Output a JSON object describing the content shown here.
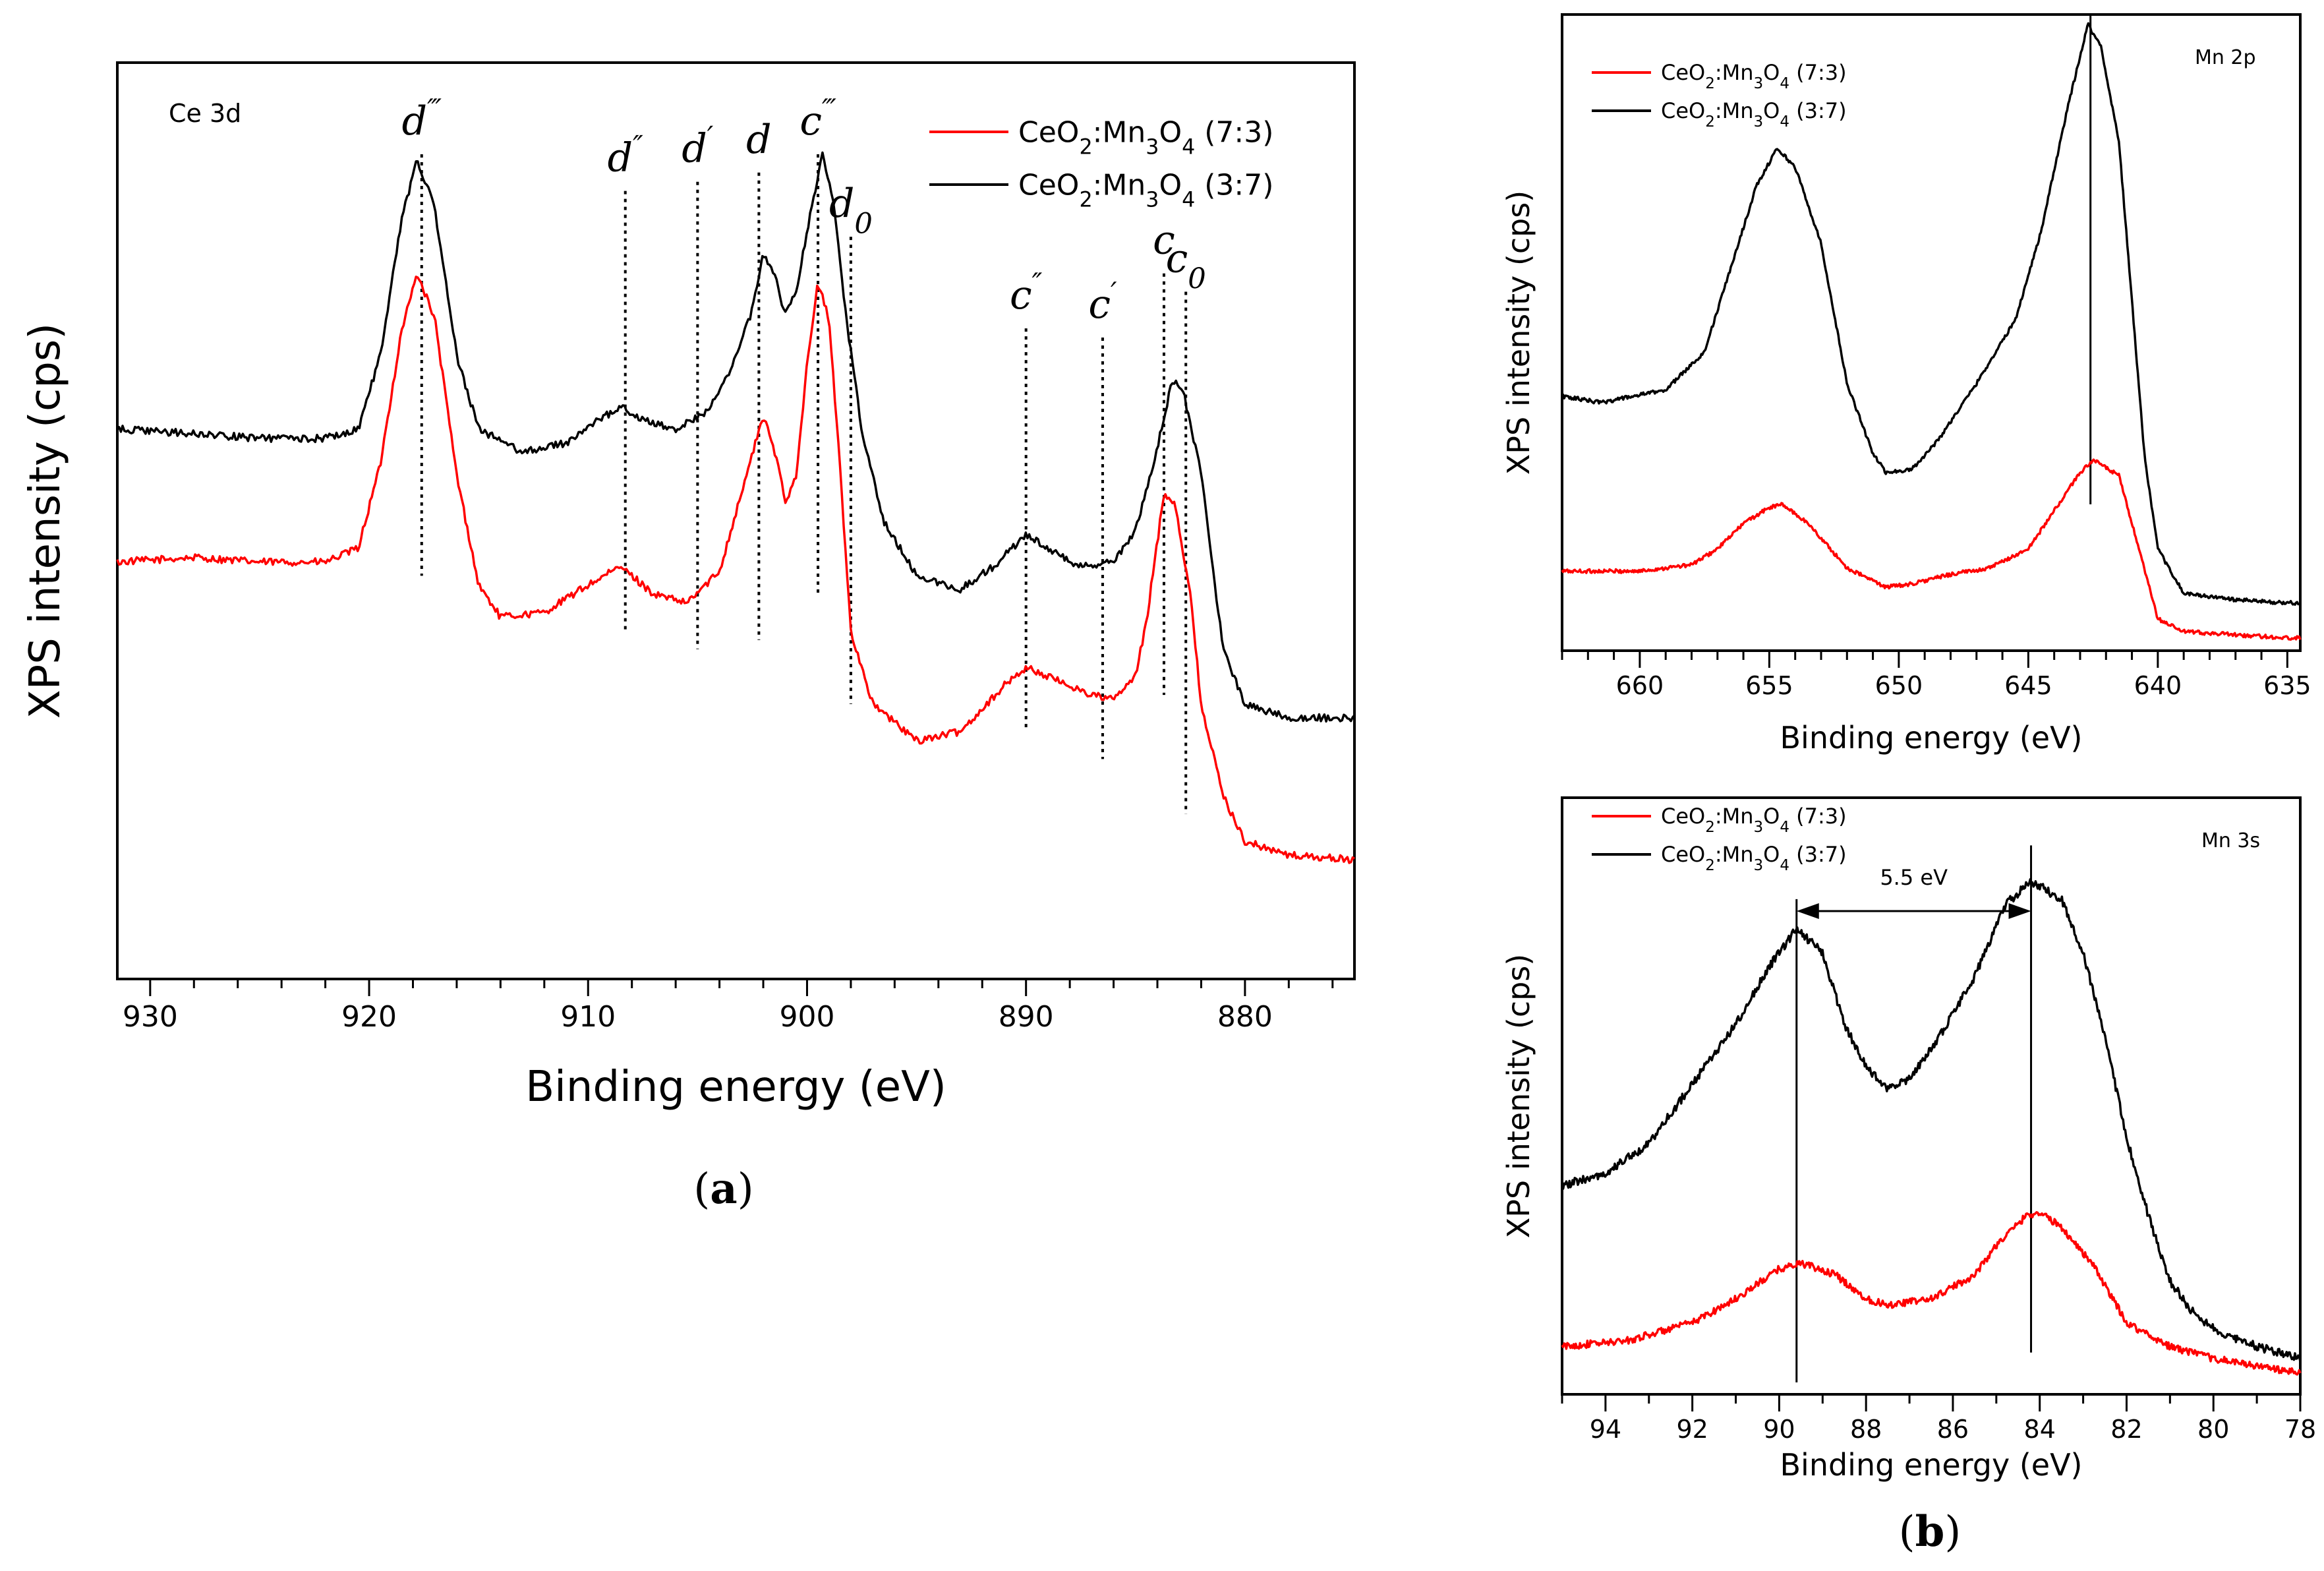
{
  "chart_data": [
    {
      "id": "a",
      "type": "line",
      "panel_label": "(a)",
      "title": "Ce 3d",
      "xlabel": "Binding energy (eV)",
      "ylabel": "XPS intensity (cps)",
      "xlim": [
        931.5,
        875
      ],
      "ylim": [
        0,
        1
      ],
      "x_reversed": true,
      "xticks": [
        930,
        920,
        910,
        900,
        890,
        880
      ],
      "legend": {
        "position": "top-right",
        "entries": [
          {
            "label": "CeO₂:Mn₃O₄ (7:3)",
            "color": "#ff0000"
          },
          {
            "label": "CeO₂:Mn₃O₄ (3:7)",
            "color": "#000000"
          }
        ]
      },
      "series": [
        {
          "name": "CeO₂:Mn₃O₄ (7:3)",
          "color": "#ff0000",
          "noise": 0.004,
          "points": [
            [
              931.5,
              0.455
            ],
            [
              928,
              0.46
            ],
            [
              925,
              0.455
            ],
            [
              922,
              0.455
            ],
            [
              920.5,
              0.47
            ],
            [
              919.5,
              0.56
            ],
            [
              918.5,
              0.71
            ],
            [
              917.8,
              0.77
            ],
            [
              917,
              0.72
            ],
            [
              916,
              0.55
            ],
            [
              915,
              0.43
            ],
            [
              914,
              0.395
            ],
            [
              912,
              0.4
            ],
            [
              910,
              0.43
            ],
            [
              908.5,
              0.45
            ],
            [
              907,
              0.42
            ],
            [
              905.5,
              0.41
            ],
            [
              904,
              0.445
            ],
            [
              903,
              0.53
            ],
            [
              902,
              0.615
            ],
            [
              901.3,
              0.56
            ],
            [
              901,
              0.52
            ],
            [
              900.5,
              0.55
            ],
            [
              900,
              0.67
            ],
            [
              899.5,
              0.76
            ],
            [
              899,
              0.72
            ],
            [
              898.5,
              0.56
            ],
            [
              898,
              0.38
            ],
            [
              897,
              0.3
            ],
            [
              895,
              0.26
            ],
            [
              893,
              0.27
            ],
            [
              891,
              0.32
            ],
            [
              890,
              0.34
            ],
            [
              889,
              0.33
            ],
            [
              887,
              0.31
            ],
            [
              886,
              0.305
            ],
            [
              885,
              0.33
            ],
            [
              884.5,
              0.39
            ],
            [
              883.7,
              0.53
            ],
            [
              883.2,
              0.52
            ],
            [
              882.5,
              0.42
            ],
            [
              882,
              0.3
            ],
            [
              881,
              0.2
            ],
            [
              880,
              0.15
            ],
            [
              878,
              0.135
            ],
            [
              875,
              0.13
            ]
          ]
        },
        {
          "name": "CeO₂:Mn₃O₄ (3:7)",
          "color": "#000000",
          "noise": 0.004,
          "points": [
            [
              931.5,
              0.6
            ],
            [
              928,
              0.595
            ],
            [
              925,
              0.59
            ],
            [
              922,
              0.59
            ],
            [
              920.5,
              0.6
            ],
            [
              919.5,
              0.68
            ],
            [
              918.5,
              0.83
            ],
            [
              917.8,
              0.895
            ],
            [
              917,
              0.84
            ],
            [
              916,
              0.68
            ],
            [
              915,
              0.6
            ],
            [
              913,
              0.575
            ],
            [
              911,
              0.585
            ],
            [
              909.5,
              0.61
            ],
            [
              908.5,
              0.625
            ],
            [
              907.5,
              0.61
            ],
            [
              906,
              0.6
            ],
            [
              904.5,
              0.62
            ],
            [
              903.5,
              0.665
            ],
            [
              902.5,
              0.73
            ],
            [
              902,
              0.79
            ],
            [
              901.5,
              0.77
            ],
            [
              901,
              0.725
            ],
            [
              900.5,
              0.75
            ],
            [
              899.8,
              0.84
            ],
            [
              899.3,
              0.9
            ],
            [
              898.8,
              0.85
            ],
            [
              898.2,
              0.72
            ],
            [
              897.5,
              0.6
            ],
            [
              896.5,
              0.5
            ],
            [
              895,
              0.44
            ],
            [
              893,
              0.425
            ],
            [
              891.5,
              0.45
            ],
            [
              890,
              0.485
            ],
            [
              889,
              0.47
            ],
            [
              887.5,
              0.45
            ],
            [
              886,
              0.455
            ],
            [
              885,
              0.49
            ],
            [
              884,
              0.58
            ],
            [
              883.3,
              0.655
            ],
            [
              882.8,
              0.64
            ],
            [
              882,
              0.55
            ],
            [
              881,
              0.36
            ],
            [
              880,
              0.3
            ],
            [
              878,
              0.285
            ],
            [
              875,
              0.285
            ]
          ]
        }
      ],
      "peak_lines": [
        {
          "label": "d",
          "primes": "‴",
          "x": 917.6,
          "y_top": 0.9,
          "y_bottom": 0.44
        },
        {
          "label": "d",
          "primes": "″",
          "x": 908.3,
          "y_top": 0.86,
          "y_bottom": 0.38
        },
        {
          "label": "d",
          "primes": "′",
          "x": 905,
          "y_top": 0.87,
          "y_bottom": 0.36
        },
        {
          "label": "d",
          "primes": "",
          "x": 902.2,
          "y_top": 0.88,
          "y_bottom": 0.37
        },
        {
          "label": "c",
          "primes": "‴",
          "x": 899.5,
          "y_top": 0.9,
          "y_bottom": 0.42
        },
        {
          "label": "d",
          "sub": "0",
          "x": 898,
          "y_top": 0.81,
          "y_bottom": 0.3
        },
        {
          "label": "c",
          "primes": "″",
          "x": 890,
          "y_top": 0.71,
          "y_bottom": 0.27
        },
        {
          "label": "c",
          "primes": "′",
          "x": 886.5,
          "y_top": 0.7,
          "y_bottom": 0.24
        },
        {
          "label": "c",
          "primes": "",
          "x": 883.7,
          "y_top": 0.77,
          "y_bottom": 0.31
        },
        {
          "label": "c",
          "sub": "0",
          "x": 882.7,
          "y_top": 0.75,
          "y_bottom": 0.18
        }
      ]
    },
    {
      "id": "b-top",
      "type": "line",
      "title": "Mn 2p",
      "xlabel": "Binding energy (eV)",
      "ylabel": "XPS intensity (cps)",
      "xlim": [
        663,
        634.5
      ],
      "ylim": [
        0,
        1
      ],
      "x_reversed": true,
      "xticks": [
        660,
        655,
        650,
        645,
        640,
        635
      ],
      "legend": {
        "position": "top-left",
        "entries": [
          {
            "label": "CeO₂:Mn₃O₄ (7:3)",
            "color": "#ff0000"
          },
          {
            "label": "CeO₂:Mn₃O₄ (3:7)",
            "color": "#000000"
          }
        ]
      },
      "series": [
        {
          "name": "CeO₂:Mn₃O₄ (7:3)",
          "color": "#ff0000",
          "noise": 0.003,
          "points": [
            [
              663,
              0.125
            ],
            [
              660,
              0.125
            ],
            [
              658,
              0.135
            ],
            [
              657,
              0.16
            ],
            [
              656,
              0.2
            ],
            [
              655,
              0.225
            ],
            [
              654.5,
              0.23
            ],
            [
              653.5,
              0.2
            ],
            [
              652,
              0.13
            ],
            [
              650.5,
              0.1
            ],
            [
              649.5,
              0.105
            ],
            [
              648,
              0.12
            ],
            [
              646.5,
              0.13
            ],
            [
              645,
              0.16
            ],
            [
              644,
              0.22
            ],
            [
              643,
              0.28
            ],
            [
              642.5,
              0.3
            ],
            [
              641.5,
              0.275
            ],
            [
              641,
              0.2
            ],
            [
              640,
              0.05
            ],
            [
              639,
              0.03
            ],
            [
              637,
              0.025
            ],
            [
              635,
              0.02
            ]
          ]
        },
        {
          "name": "CeO₂:Mn₃O₄ (3:7)",
          "color": "#000000",
          "noise": 0.003,
          "points": [
            [
              663,
              0.4
            ],
            [
              661.5,
              0.39
            ],
            [
              659,
              0.41
            ],
            [
              657.5,
              0.47
            ],
            [
              656.5,
              0.6
            ],
            [
              655.5,
              0.73
            ],
            [
              654.7,
              0.79
            ],
            [
              654,
              0.76
            ],
            [
              653,
              0.64
            ],
            [
              652,
              0.42
            ],
            [
              651,
              0.31
            ],
            [
              650.5,
              0.28
            ],
            [
              649.5,
              0.285
            ],
            [
              648.5,
              0.33
            ],
            [
              647,
              0.42
            ],
            [
              645.5,
              0.52
            ],
            [
              644.5,
              0.66
            ],
            [
              643.5,
              0.85
            ],
            [
              642.7,
              0.985
            ],
            [
              642.2,
              0.95
            ],
            [
              641.5,
              0.8
            ],
            [
              641,
              0.55
            ],
            [
              640.5,
              0.3
            ],
            [
              640,
              0.16
            ],
            [
              639,
              0.09
            ],
            [
              637,
              0.08
            ],
            [
              635,
              0.075
            ]
          ]
        }
      ],
      "ref_lines": [
        {
          "x": 642.6,
          "y_top": 1.0,
          "y_bottom": 0.23
        }
      ]
    },
    {
      "id": "b-bottom",
      "type": "line",
      "panel_label": "(b)",
      "title": "Mn 3s",
      "xlabel": "Binding energy (eV)",
      "ylabel": "XPS intensity (cps)",
      "xlim": [
        95,
        78
      ],
      "ylim": [
        0,
        1
      ],
      "x_reversed": true,
      "xticks": [
        94,
        92,
        90,
        88,
        86,
        84,
        82,
        80,
        78
      ],
      "legend": {
        "position": "top-left",
        "entries": [
          {
            "label": "CeO₂:Mn₃O₄ (7:3)",
            "color": "#ff0000"
          },
          {
            "label": "CeO₂:Mn₃O₄ (3:7)",
            "color": "#000000"
          }
        ]
      },
      "annotation": {
        "text": "5.5 eV",
        "x_from": 89.6,
        "x_to": 84.2,
        "y": 0.81
      },
      "series": [
        {
          "name": "CeO₂:Mn₃O₄ (7:3)",
          "color": "#ff0000",
          "noise": 0.006,
          "points": [
            [
              95,
              0.08
            ],
            [
              93.5,
              0.09
            ],
            [
              92,
              0.12
            ],
            [
              91,
              0.16
            ],
            [
              90,
              0.21
            ],
            [
              89.5,
              0.22
            ],
            [
              88.7,
              0.2
            ],
            [
              88,
              0.16
            ],
            [
              87.5,
              0.15
            ],
            [
              86.5,
              0.16
            ],
            [
              85.5,
              0.2
            ],
            [
              85,
              0.25
            ],
            [
              84.3,
              0.3
            ],
            [
              84,
              0.305
            ],
            [
              83.5,
              0.28
            ],
            [
              82.8,
              0.22
            ],
            [
              82,
              0.12
            ],
            [
              81,
              0.08
            ],
            [
              80,
              0.06
            ],
            [
              78,
              0.035
            ]
          ]
        },
        {
          "name": "CeO₂:Mn₃O₄ (3:7)",
          "color": "#000000",
          "noise": 0.007,
          "points": [
            [
              95,
              0.35
            ],
            [
              94,
              0.37
            ],
            [
              93,
              0.42
            ],
            [
              92,
              0.52
            ],
            [
              91,
              0.62
            ],
            [
              90.2,
              0.72
            ],
            [
              89.6,
              0.78
            ],
            [
              89,
              0.74
            ],
            [
              88.5,
              0.62
            ],
            [
              88,
              0.55
            ],
            [
              87.5,
              0.51
            ],
            [
              87,
              0.53
            ],
            [
              86.3,
              0.6
            ],
            [
              85.5,
              0.7
            ],
            [
              84.8,
              0.82
            ],
            [
              84.2,
              0.86
            ],
            [
              83.5,
              0.83
            ],
            [
              83,
              0.74
            ],
            [
              82.5,
              0.6
            ],
            [
              82,
              0.43
            ],
            [
              81.5,
              0.3
            ],
            [
              81,
              0.19
            ],
            [
              80.5,
              0.14
            ],
            [
              80,
              0.11
            ],
            [
              79,
              0.08
            ],
            [
              78,
              0.06
            ]
          ]
        }
      ],
      "ref_lines": [
        {
          "x": 89.6,
          "y_top": 0.83,
          "y_bottom": 0.02
        },
        {
          "x": 84.2,
          "y_top": 0.92,
          "y_bottom": 0.07
        }
      ]
    }
  ]
}
